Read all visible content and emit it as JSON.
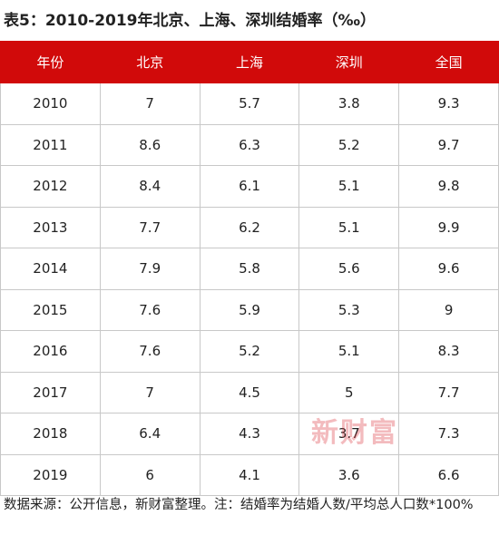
{
  "header": {
    "title": "表5：2010-2019年北京、上海、深圳结婚率（‰）"
  },
  "table": {
    "columns": [
      "年份",
      "北京",
      "上海",
      "深圳",
      "全国"
    ],
    "rows": [
      [
        2010,
        7,
        5.7,
        3.8,
        9.3
      ],
      [
        2011,
        8.6,
        6.3,
        5.2,
        9.7
      ],
      [
        2012,
        8.4,
        6.1,
        5.1,
        9.8
      ],
      [
        2013,
        7.7,
        6.2,
        5.1,
        9.9
      ],
      [
        2014,
        7.9,
        5.8,
        5.6,
        9.6
      ],
      [
        2015,
        7.6,
        5.9,
        5.3,
        9
      ],
      [
        2016,
        7.6,
        5.2,
        5.1,
        8.3
      ],
      [
        2017,
        7,
        4.5,
        5,
        7.7
      ],
      [
        2018,
        6.4,
        4.3,
        3.7,
        7.3
      ],
      [
        2019,
        6,
        4.1,
        3.6,
        6.6
      ]
    ]
  },
  "watermark": "新财富",
  "footer": {
    "note": "数据来源：公开信息，新财富整理。注：结婚率为结婚人数/平均总人口数*100%"
  }
}
